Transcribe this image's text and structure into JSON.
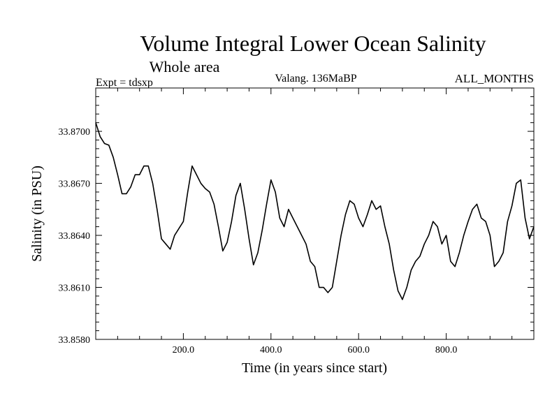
{
  "chart_data": {
    "type": "line",
    "title": "Volume Integral Lower Ocean Salinity",
    "subtitle": "Whole area",
    "experiment_label": "Expt = tdsxp",
    "period_label": "Valang. 136MaBP",
    "months_label": "ALL_MONTHS",
    "xlabel": "Time (in years since start)",
    "ylabel": "Salinity (in PSU)",
    "xlim": [
      0,
      1000
    ],
    "ylim": [
      33.858,
      33.8725
    ],
    "x_ticks": [
      200,
      400,
      600,
      800
    ],
    "x_tick_labels": [
      "200.0",
      "400.0",
      "600.0",
      "800.0"
    ],
    "y_ticks": [
      33.858,
      33.861,
      33.864,
      33.867,
      33.87
    ],
    "y_tick_labels": [
      "33.8580",
      "33.8610",
      "33.8640",
      "33.8670",
      "33.8700"
    ],
    "grid": false,
    "series": [
      {
        "name": "Salinity",
        "color": "#000000",
        "x": [
          0,
          10,
          20,
          30,
          40,
          50,
          60,
          70,
          80,
          90,
          100,
          110,
          120,
          130,
          140,
          150,
          160,
          170,
          180,
          190,
          200,
          210,
          220,
          230,
          240,
          250,
          260,
          270,
          280,
          290,
          300,
          310,
          320,
          330,
          340,
          350,
          360,
          370,
          380,
          390,
          400,
          410,
          420,
          430,
          440,
          450,
          460,
          470,
          480,
          490,
          500,
          510,
          520,
          530,
          540,
          550,
          560,
          570,
          580,
          590,
          600,
          610,
          620,
          630,
          640,
          650,
          660,
          670,
          680,
          690,
          700,
          710,
          720,
          730,
          740,
          750,
          760,
          770,
          780,
          790,
          800,
          810,
          820,
          830,
          840,
          850,
          860,
          870,
          880,
          890,
          900,
          910,
          920,
          930,
          940,
          950,
          960,
          970,
          980,
          990,
          1000
        ],
        "values": [
          33.8705,
          33.8697,
          33.8693,
          33.8692,
          33.8685,
          33.8675,
          33.8664,
          33.8664,
          33.8668,
          33.8675,
          33.8675,
          33.868,
          33.868,
          33.867,
          33.8655,
          33.8638,
          33.8635,
          33.8632,
          33.864,
          33.8644,
          33.8648,
          33.8665,
          33.868,
          33.8675,
          33.867,
          33.8667,
          33.8665,
          33.8658,
          33.8645,
          33.8631,
          33.8636,
          33.8648,
          33.8663,
          33.867,
          33.8655,
          33.8638,
          33.8623,
          33.863,
          33.8643,
          33.8658,
          33.8672,
          33.8665,
          33.865,
          33.8645,
          33.8655,
          33.865,
          33.8645,
          33.864,
          33.8635,
          33.8625,
          33.8622,
          33.861,
          33.861,
          33.8607,
          33.861,
          33.8625,
          33.864,
          33.8652,
          33.866,
          33.8658,
          33.865,
          33.8645,
          33.8652,
          33.866,
          33.8655,
          33.8657,
          33.8645,
          33.8635,
          33.862,
          33.8608,
          33.8603,
          33.861,
          33.862,
          33.8625,
          33.8628,
          33.8635,
          33.864,
          33.8648,
          33.8645,
          33.8635,
          33.864,
          33.8625,
          33.8622,
          33.863,
          33.864,
          33.8648,
          33.8655,
          33.8658,
          33.865,
          33.8648,
          33.864,
          33.8622,
          33.8625,
          33.863,
          33.8648,
          33.8657,
          33.867,
          33.8672,
          33.865,
          33.8638,
          33.8645
        ]
      }
    ]
  }
}
